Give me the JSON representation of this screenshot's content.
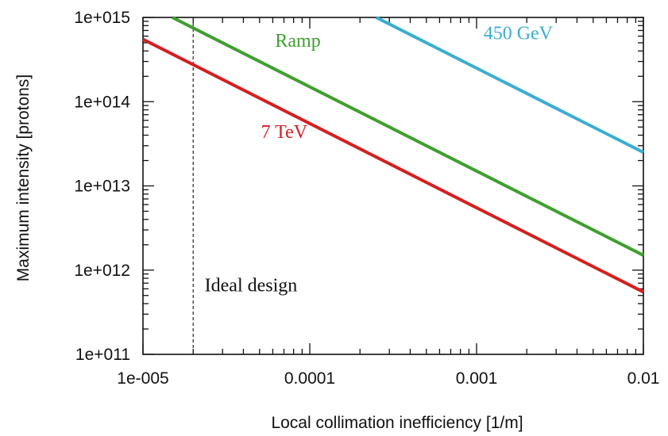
{
  "chart_data": {
    "type": "line",
    "xlabel": "Local collimation inefficiency [1/m]",
    "ylabel": "Maximum intensity [protons]",
    "xscale": "log",
    "yscale": "log",
    "xlim": [
      1e-05,
      0.01
    ],
    "ylim": [
      100000000000.0,
      1000000000000000.0
    ],
    "x_ticks": [
      {
        "value": 1e-05,
        "label": "1e-005"
      },
      {
        "value": 0.0001,
        "label": "0.0001"
      },
      {
        "value": 0.001,
        "label": "0.001"
      },
      {
        "value": 0.01,
        "label": "0.01"
      }
    ],
    "y_ticks": [
      {
        "value": 100000000000.0,
        "label": "1e+011"
      },
      {
        "value": 1000000000000.0,
        "label": "1e+012"
      },
      {
        "value": 10000000000000.0,
        "label": "1e+013"
      },
      {
        "value": 100000000000000.0,
        "label": "1e+014"
      },
      {
        "value": 1000000000000000.0,
        "label": "1e+015"
      }
    ],
    "grid": false,
    "series": [
      {
        "name": "450 GeV",
        "color": "#3aaed0",
        "points": [
          [
            0.00025,
            1000000000000000.0
          ],
          [
            0.01,
            25000000000000.0
          ]
        ]
      },
      {
        "name": "Ramp",
        "color": "#3f9f2f",
        "points": [
          [
            1.5e-05,
            1000000000000000.0
          ],
          [
            0.01,
            1500000000000.0
          ]
        ]
      },
      {
        "name": "7 TeV",
        "color": "#d4201e",
        "points": [
          [
            1e-05,
            550000000000000.0
          ],
          [
            0.01,
            550000000000.0
          ]
        ]
      }
    ],
    "series_label_positions": [
      {
        "series": 0,
        "x": 0.0011,
        "y": 550000000000000.0
      },
      {
        "series": 1,
        "x": 6.2e-05,
        "y": 450000000000000.0
      },
      {
        "series": 2,
        "x": 5.1e-05,
        "y": 37000000000000.0
      }
    ],
    "annotations": [
      {
        "type": "vline",
        "x": 2e-05,
        "style": "dashed",
        "color": "#222222"
      },
      {
        "type": "text",
        "text": "Ideal design",
        "x": 2.1e-05,
        "y": 560000000000.0
      }
    ]
  }
}
